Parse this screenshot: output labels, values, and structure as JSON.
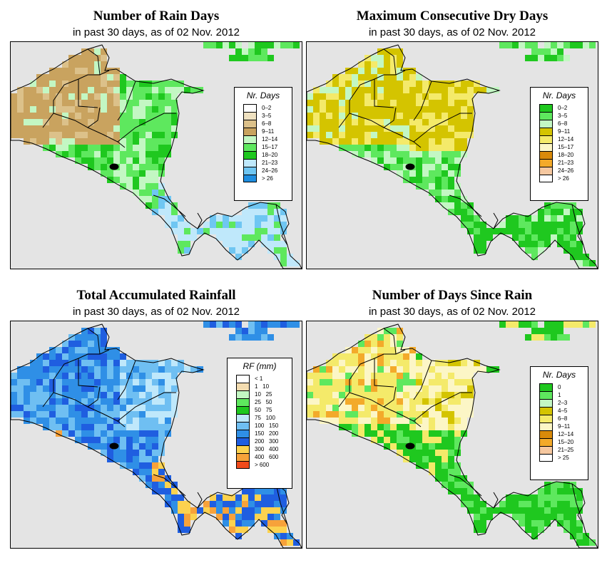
{
  "panels": [
    {
      "id": "rain_days",
      "title": "Number of Rain Days",
      "subtitle": "in past 30 days, as of  02 Nov. 2012",
      "legend_title": "Nr. Days",
      "legend": [
        {
          "label": "0–2",
          "color": "#ffffff"
        },
        {
          "label": "3–5",
          "color": "#efe1c0"
        },
        {
          "label": "6–8",
          "color": "#dcc18a"
        },
        {
          "label": "9–11",
          "color": "#c9a35f"
        },
        {
          "label": "12–14",
          "color": "#c3f7c3"
        },
        {
          "label": "15–17",
          "color": "#5ee85e"
        },
        {
          "label": "18–20",
          "color": "#1fc81f"
        },
        {
          "label": "21–23",
          "color": "#bfe8fb"
        },
        {
          "label": "24–26",
          "color": "#6fc6f2"
        },
        {
          "label": "> 26",
          "color": "#1f8ee0"
        }
      ]
    },
    {
      "id": "dry_days",
      "title": "Maximum Consecutive Dry Days",
      "subtitle": "in past 30 days, as of  02 Nov. 2012",
      "legend_title": "Nr. Days",
      "legend": [
        {
          "label": "0–2",
          "color": "#1fc81f"
        },
        {
          "label": "3–5",
          "color": "#5ee85e"
        },
        {
          "label": "6–8",
          "color": "#c3f7c3"
        },
        {
          "label": "9–11",
          "color": "#d4c400"
        },
        {
          "label": "12–14",
          "color": "#f4ea6a"
        },
        {
          "label": "15–17",
          "color": "#fcf6c6"
        },
        {
          "label": "18–20",
          "color": "#d98a0a"
        },
        {
          "label": "21–23",
          "color": "#f3aa2a"
        },
        {
          "label": "24–26",
          "color": "#f6c8a0"
        },
        {
          "label": "> 26",
          "color": "#ffffff"
        }
      ]
    },
    {
      "id": "rainfall",
      "title": "Total Accumulated Rainfall",
      "subtitle": "in past 30 days, as of  02 Nov. 2012",
      "legend_title": "RF (mm)",
      "legend": [
        {
          "label": "< 1",
          "color": "#ffffff"
        },
        {
          "label": "1   10",
          "color": "#f3dcb0"
        },
        {
          "label": "10   25",
          "color": "#c3f7c3"
        },
        {
          "label": "25   50",
          "color": "#5ee85e"
        },
        {
          "label": "50   75",
          "color": "#1fc81f"
        },
        {
          "label": "75   100",
          "color": "#bfe8fb"
        },
        {
          "label": "100   150",
          "color": "#6fbff2"
        },
        {
          "label": "150   200",
          "color": "#2f8fe6"
        },
        {
          "label": "200   300",
          "color": "#1f5ee0"
        },
        {
          "label": "300   400",
          "color": "#fcd24f"
        },
        {
          "label": "400   600",
          "color": "#f7a23a"
        },
        {
          "label": "> 600",
          "color": "#f04a1a"
        }
      ]
    },
    {
      "id": "days_since_rain",
      "title": "Number of Days Since Rain",
      "subtitle": "in past 30 days, as of  02 Nov. 2012",
      "legend_title": "Nr. Days",
      "legend": [
        {
          "label": "0",
          "color": "#1fc81f"
        },
        {
          "label": "1",
          "color": "#5ee85e"
        },
        {
          "label": "2–3",
          "color": "#c3f7c3"
        },
        {
          "label": "4–5",
          "color": "#d4c400"
        },
        {
          "label": "6–8",
          "color": "#f4ea6a"
        },
        {
          "label": "9–11",
          "color": "#fcf6c6"
        },
        {
          "label": "12–14",
          "color": "#d98a0a"
        },
        {
          "label": "15–20",
          "color": "#f3aa2a"
        },
        {
          "label": "21–25",
          "color": "#f6c8a0"
        },
        {
          "label": "> 25",
          "color": "#ffffff"
        }
      ]
    }
  ]
}
